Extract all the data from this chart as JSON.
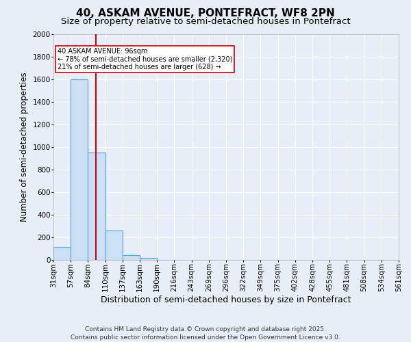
{
  "title": "40, ASKAM AVENUE, PONTEFRACT, WF8 2PN",
  "subtitle": "Size of property relative to semi-detached houses in Pontefract",
  "xlabel": "Distribution of semi-detached houses by size in Pontefract",
  "ylabel": "Number of semi-detached properties",
  "bins": [
    "31sqm",
    "57sqm",
    "84sqm",
    "110sqm",
    "137sqm",
    "163sqm",
    "190sqm",
    "216sqm",
    "243sqm",
    "269sqm",
    "296sqm",
    "322sqm",
    "349sqm",
    "375sqm",
    "402sqm",
    "428sqm",
    "455sqm",
    "481sqm",
    "508sqm",
    "534sqm",
    "561sqm"
  ],
  "values": [
    115,
    1600,
    950,
    260,
    40,
    20,
    0,
    0,
    0,
    0,
    0,
    0,
    0,
    0,
    0,
    0,
    0,
    0,
    0,
    0
  ],
  "bar_color": "#cce0f5",
  "bar_edge_color": "#5a9fd4",
  "red_line_color": "#cc0000",
  "red_line_x": 2.48,
  "annotation_line1": "40 ASKAM AVENUE: 96sqm",
  "annotation_line2": "← 78% of semi-detached houses are smaller (2,320)",
  "annotation_line3": "21% of semi-detached houses are larger (628) →",
  "annotation_box_color": "#ffffff",
  "annotation_box_edge": "#cc0000",
  "ylim": [
    0,
    2000
  ],
  "yticks": [
    0,
    200,
    400,
    600,
    800,
    1000,
    1200,
    1400,
    1600,
    1800,
    2000
  ],
  "background_color": "#e8eef8",
  "grid_color": "#ffffff",
  "footer": "Contains HM Land Registry data © Crown copyright and database right 2025.\nContains public sector information licensed under the Open Government Licence v3.0.",
  "title_fontsize": 11,
  "subtitle_fontsize": 9.5,
  "xlabel_fontsize": 9,
  "ylabel_fontsize": 8.5,
  "tick_fontsize": 7.5,
  "footer_fontsize": 6.5
}
